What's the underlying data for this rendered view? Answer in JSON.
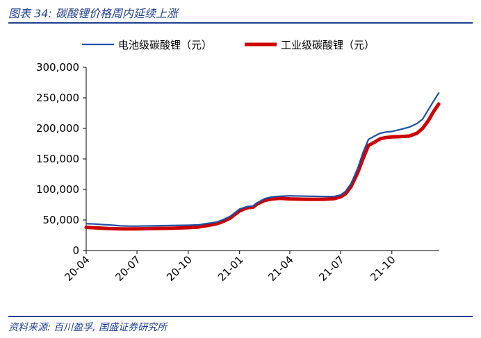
{
  "header": {
    "title": "图表 34:  碳酸锂价格周内延续上涨"
  },
  "footer": {
    "source": "资料来源:  百川盈孚,  国盛证券研究所"
  },
  "colors": {
    "battery": "#1f4fa8",
    "industrial": "#cc0000",
    "rule": "#1f3f8f"
  },
  "chart_data": {
    "type": "line",
    "x_ticks": [
      "20-04",
      "20-07",
      "20-10",
      "21-01",
      "21-04",
      "21-07",
      "21-10"
    ],
    "y_ticks": [
      "0",
      "50,000",
      "100,000",
      "150,000",
      "200,000",
      "250,000",
      "300,000"
    ],
    "ylim": [
      0,
      300000
    ],
    "xlim": [
      "2020-04-01",
      "2021-12-25"
    ],
    "grid": false,
    "legend_position": "top",
    "series": [
      {
        "name": "电池级碳酸锂（元）",
        "points": [
          [
            "2020-04-01",
            44000
          ],
          [
            "2020-04-15",
            43500
          ],
          [
            "2020-05-01",
            42500
          ],
          [
            "2020-05-20",
            41500
          ],
          [
            "2020-06-01",
            40500
          ],
          [
            "2020-06-20",
            40000
          ],
          [
            "2020-07-01",
            40000
          ],
          [
            "2020-08-01",
            40500
          ],
          [
            "2020-09-01",
            41000
          ],
          [
            "2020-10-01",
            41500
          ],
          [
            "2020-10-20",
            42000
          ],
          [
            "2020-11-01",
            44000
          ],
          [
            "2020-11-20",
            46500
          ],
          [
            "2020-12-01",
            50000
          ],
          [
            "2020-12-15",
            56000
          ],
          [
            "2021-01-01",
            68000
          ],
          [
            "2021-01-15",
            72000
          ],
          [
            "2021-01-25",
            73000
          ],
          [
            "2021-02-01",
            78000
          ],
          [
            "2021-02-15",
            85000
          ],
          [
            "2021-03-01",
            88000
          ],
          [
            "2021-03-15",
            89000
          ],
          [
            "2021-04-01",
            89500
          ],
          [
            "2021-05-01",
            89000
          ],
          [
            "2021-06-01",
            88500
          ],
          [
            "2021-06-20",
            88500
          ],
          [
            "2021-07-01",
            91000
          ],
          [
            "2021-07-10",
            97000
          ],
          [
            "2021-07-20",
            110000
          ],
          [
            "2021-08-01",
            135000
          ],
          [
            "2021-08-10",
            160000
          ],
          [
            "2021-08-20",
            182000
          ],
          [
            "2021-09-01",
            188000
          ],
          [
            "2021-09-10",
            192000
          ],
          [
            "2021-09-20",
            194000
          ],
          [
            "2021-10-01",
            195000
          ],
          [
            "2021-10-15",
            198000
          ],
          [
            "2021-11-01",
            202000
          ],
          [
            "2021-11-15",
            208000
          ],
          [
            "2021-11-25",
            215000
          ],
          [
            "2021-12-05",
            230000
          ],
          [
            "2021-12-15",
            245000
          ],
          [
            "2021-12-24",
            258000
          ]
        ]
      },
      {
        "name": "工业级碳酸锂（元）",
        "points": [
          [
            "2020-04-01",
            38000
          ],
          [
            "2020-04-20",
            37000
          ],
          [
            "2020-05-10",
            36000
          ],
          [
            "2020-06-01",
            35500
          ],
          [
            "2020-07-01",
            35500
          ],
          [
            "2020-08-01",
            36000
          ],
          [
            "2020-09-01",
            36500
          ],
          [
            "2020-10-01",
            37500
          ],
          [
            "2020-10-20",
            38500
          ],
          [
            "2020-11-01",
            40500
          ],
          [
            "2020-11-20",
            43500
          ],
          [
            "2020-12-01",
            47000
          ],
          [
            "2020-12-15",
            53000
          ],
          [
            "2021-01-01",
            65000
          ],
          [
            "2021-01-15",
            70000
          ],
          [
            "2021-01-25",
            71000
          ],
          [
            "2021-02-01",
            76000
          ],
          [
            "2021-02-15",
            82000
          ],
          [
            "2021-03-01",
            84500
          ],
          [
            "2021-03-15",
            85500
          ],
          [
            "2021-04-01",
            84500
          ],
          [
            "2021-05-01",
            84000
          ],
          [
            "2021-06-01",
            84000
          ],
          [
            "2021-06-20",
            85000
          ],
          [
            "2021-07-01",
            88000
          ],
          [
            "2021-07-10",
            93000
          ],
          [
            "2021-07-20",
            105000
          ],
          [
            "2021-08-01",
            128000
          ],
          [
            "2021-08-10",
            150000
          ],
          [
            "2021-08-20",
            172000
          ],
          [
            "2021-09-01",
            178000
          ],
          [
            "2021-09-10",
            183000
          ],
          [
            "2021-09-20",
            185000
          ],
          [
            "2021-10-01",
            186000
          ],
          [
            "2021-10-15",
            186500
          ],
          [
            "2021-11-01",
            187500
          ],
          [
            "2021-11-15",
            192000
          ],
          [
            "2021-11-25",
            200000
          ],
          [
            "2021-12-05",
            212000
          ],
          [
            "2021-12-15",
            228000
          ],
          [
            "2021-12-24",
            240000
          ]
        ]
      }
    ]
  }
}
